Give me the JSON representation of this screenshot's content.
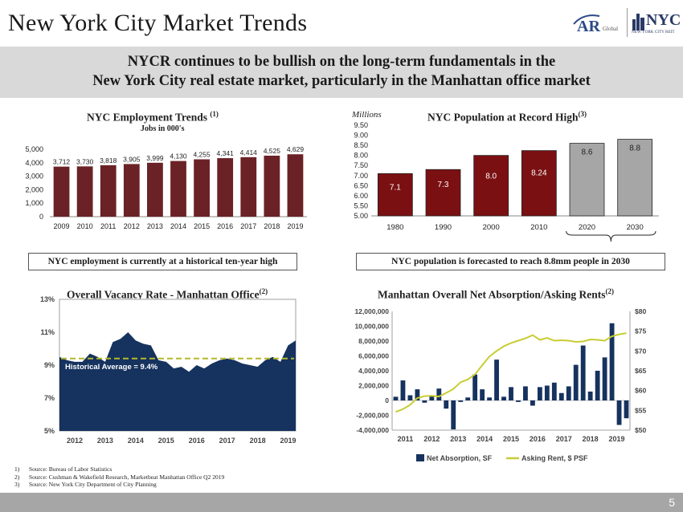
{
  "header": {
    "title": "New York City Market Trends",
    "logo_ar_text": "AR",
    "logo_global_text": "Global",
    "logo_nyc_text": "NYC",
    "logo_nyc_sub": "NEW YORK CITY REIT"
  },
  "banner": {
    "line1": "NYCR continues to be bullish on the long-term fundamentals in the",
    "line2": "New York City real estate market, particularly in the Manhattan office market"
  },
  "callouts": {
    "employment": "NYC employment is currently at a historical ten-year high",
    "population": "NYC population is forecasted to reach 8.8mm people in 2030"
  },
  "footnotes": [
    {
      "num": "1)",
      "text": "Source: Bureau of Labor Statistics"
    },
    {
      "num": "2)",
      "text": "Source: Cushman & Wakefield Research, Marketbeat Manhattan Office Q2 2019"
    },
    {
      "num": "3)",
      "text": "Source: New York City Department of City Planning"
    }
  ],
  "page_number": "5",
  "colors": {
    "employment_bar": "#6b2226",
    "population_bar": "#7a1012",
    "population_forecast_bar": "#a6a6a6",
    "vacancy_fill": "#16325e",
    "vacancy_avg_line": "#b5b82a",
    "absorption_bar": "#16325e",
    "rent_line": "#c8cc33"
  },
  "chart_data": [
    {
      "id": "employment",
      "type": "bar",
      "title": "NYC Employment Trends",
      "title_sup": "(1)",
      "subtitle": "Jobs in 000's",
      "categories": [
        "2009",
        "2010",
        "2011",
        "2012",
        "2013",
        "2014",
        "2015",
        "2016",
        "2017",
        "2018",
        "2019"
      ],
      "values": [
        3712,
        3730,
        3818,
        3905,
        3999,
        4130,
        4255,
        4341,
        4414,
        4525,
        4629
      ],
      "labels": [
        "3,712",
        "3,730",
        "3,818",
        "3,905",
        "3,999",
        "4,130",
        "4,255",
        "4,341",
        "4,414",
        "4,525",
        "4,629"
      ],
      "ylim": [
        0,
        5000
      ],
      "yticks": [
        "0",
        "1,000",
        "2,000",
        "3,000",
        "4,000",
        "5,000"
      ]
    },
    {
      "id": "population",
      "type": "bar",
      "title": "NYC Population at Record High",
      "title_sup": "(3)",
      "unit_label": "Millions",
      "categories": [
        "1980",
        "1990",
        "2000",
        "2010",
        "2020",
        "2030"
      ],
      "values": [
        7.1,
        7.3,
        8.0,
        8.24,
        8.6,
        8.8
      ],
      "labels": [
        "7.1",
        "7.3",
        "8.0",
        "8.24",
        "8.6",
        "8.8"
      ],
      "forecast": [
        false,
        false,
        false,
        false,
        true,
        true
      ],
      "ylim": [
        5.0,
        9.5
      ],
      "yticks": [
        "5.00",
        "5.50",
        "6.00",
        "6.50",
        "7.00",
        "7.50",
        "8.00",
        "8.50",
        "9.00",
        "9.50"
      ]
    },
    {
      "id": "vacancy",
      "type": "area",
      "title": "Overall Vacancy Rate - Manhattan Office",
      "title_sup": "(2)",
      "x": [
        2011.5,
        2011.75,
        2012,
        2012.25,
        2012.5,
        2012.75,
        2013,
        2013.25,
        2013.5,
        2013.75,
        2014,
        2014.25,
        2014.5,
        2014.75,
        2015,
        2015.25,
        2015.5,
        2015.75,
        2016,
        2016.25,
        2016.5,
        2016.75,
        2017,
        2017.25,
        2017.5,
        2017.75,
        2018,
        2018.25,
        2018.5,
        2018.75,
        2019,
        2019.25
      ],
      "values": [
        9.5,
        9.3,
        9.2,
        9.2,
        9.7,
        9.5,
        9.2,
        10.4,
        10.6,
        11.0,
        10.5,
        10.3,
        10.2,
        9.3,
        9.2,
        8.8,
        8.9,
        8.6,
        9.0,
        8.8,
        9.1,
        9.3,
        9.4,
        9.3,
        9.1,
        9.0,
        8.9,
        9.3,
        9.5,
        9.2,
        10.2,
        10.5
      ],
      "average": 9.4,
      "average_label": "Historical Average = 9.4%",
      "ylim": [
        5,
        13
      ],
      "yticks": [
        "5%",
        "7%",
        "9%",
        "11%",
        "13%"
      ],
      "xticks": [
        "2012",
        "2013",
        "2014",
        "2015",
        "2016",
        "2017",
        "2018",
        "2019"
      ]
    },
    {
      "id": "absorption",
      "type": "bar",
      "title": "Manhattan Overall Net Absorption/Asking Rents",
      "title_sup": "(2)",
      "series": [
        {
          "name": "Net Absorption, SF",
          "axis": "left",
          "values": [
            500000,
            2700000,
            700000,
            1500000,
            -300000,
            600000,
            1600000,
            -1100000,
            -3900000,
            -200000,
            400000,
            3500000,
            1500000,
            400000,
            5500000,
            500000,
            1800000,
            -200000,
            1900000,
            -700000,
            1800000,
            2000000,
            2400000,
            1000000,
            1900000,
            4800000,
            7400000,
            1200000,
            4000000,
            5800000,
            10400000,
            -3300000,
            -2400000
          ]
        },
        {
          "name": "Asking Rent, $ PSF",
          "axis": "right",
          "values": [
            54.6,
            55.3,
            56.4,
            58.1,
            58.6,
            58.7,
            58.5,
            59.4,
            60.4,
            62.1,
            62.8,
            64.1,
            66.4,
            68.6,
            70.0,
            71.2,
            72.0,
            72.6,
            73.2,
            74.0,
            72.8,
            73.3,
            72.6,
            72.7,
            72.6,
            72.3,
            72.4,
            72.9,
            72.8,
            72.6,
            73.7,
            74.2,
            74.5
          ]
        }
      ],
      "left_ylim": [
        -4000000,
        12000000
      ],
      "right_ylim": [
        50,
        80
      ],
      "left_yticks": [
        "-4,000,000",
        "-2,000,000",
        "0",
        "2,000,000",
        "4,000,000",
        "6,000,000",
        "8,000,000",
        "10,000,000",
        "12,000,000"
      ],
      "right_yticks": [
        "$50",
        "$55",
        "$60",
        "$65",
        "$70",
        "$75",
        "$80"
      ],
      "xticks": [
        "2011",
        "2012",
        "2013",
        "2014",
        "2015",
        "2016",
        "2017",
        "2018",
        "2019"
      ]
    }
  ]
}
